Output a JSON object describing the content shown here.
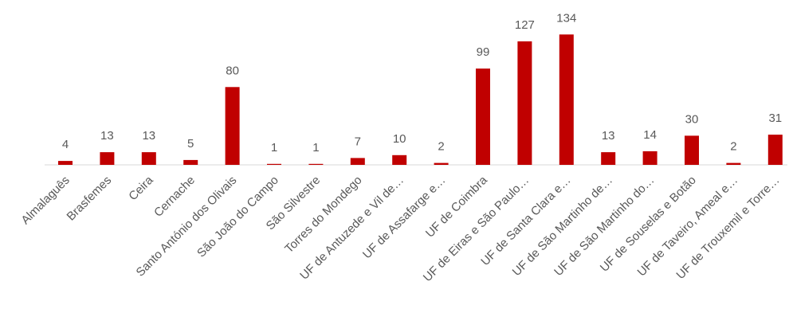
{
  "chart_data": {
    "type": "bar",
    "categories": [
      "Almalaguês",
      "Brasfemes",
      "Ceira",
      "Cernache",
      "Santo António dos Olivais",
      "São João do Campo",
      "São Silvestre",
      "Torres do Mondego",
      "UF de Antuzede e Vil de…",
      "UF de Assafarge e…",
      "UF de Coimbra",
      "UF de Eiras e São Paulo…",
      "UF de Santa Clara e…",
      "UF de São Martinho de…",
      "UF de São Martinho do…",
      "UF de Souselas e Botão",
      "UF de Taveiro, Ameal e…",
      "UF de Trouxemil e Torre…"
    ],
    "values": [
      4,
      13,
      13,
      5,
      80,
      1,
      1,
      7,
      10,
      2,
      99,
      127,
      134,
      13,
      14,
      30,
      2,
      31
    ],
    "title": "",
    "xlabel": "",
    "ylabel": "",
    "ylim": [
      0,
      140
    ],
    "grid": false,
    "legend": "none",
    "data_labels": true,
    "tick_label_rotation_deg": -45
  },
  "colors": {
    "bar": "#c00000",
    "label": "#595959",
    "axis": "#d9d9d9"
  }
}
